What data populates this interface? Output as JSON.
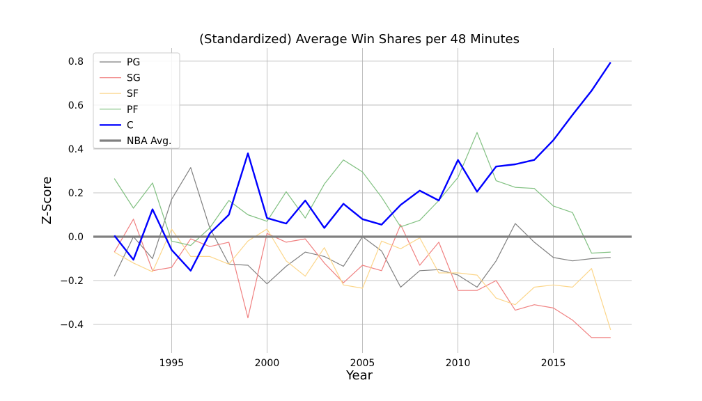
{
  "chart_data": {
    "type": "line",
    "title": "(Standardized) Average Win Shares per 48 Minutes",
    "xlabel": "Year",
    "ylabel": "Z-Score",
    "xlim": [
      1988.6,
      1919.4
    ],
    "ylim": [
      -0.53,
      0.86
    ],
    "grid": true,
    "legend_position": "top-left",
    "x_ticks": [
      1995,
      2000,
      2005,
      2010,
      2015
    ],
    "y_ticks": [
      -0.4,
      -0.2,
      0.0,
      0.2,
      0.4,
      0.6,
      0.8
    ],
    "y_tick_labels": [
      "−0.4",
      "−0.2",
      "0.0",
      "0.2",
      "0.4",
      "0.6",
      "0.8"
    ],
    "x": [
      1992,
      1993,
      1994,
      1995,
      1996,
      1997,
      1998,
      1999,
      2000,
      2001,
      2002,
      2003,
      2004,
      2005,
      2006,
      2007,
      2008,
      2009,
      2010,
      2011,
      2012,
      2013,
      2014,
      2015,
      2016,
      2017,
      2018
    ],
    "series": [
      {
        "name": "PG",
        "color": "#808080",
        "width": 1.2,
        "opacity": 1,
        "values": [
          -0.18,
          0.0,
          -0.1,
          0.17,
          0.315,
          0.04,
          -0.125,
          -0.13,
          -0.215,
          -0.135,
          -0.07,
          -0.09,
          -0.135,
          0.0,
          -0.065,
          -0.23,
          -0.155,
          -0.15,
          -0.175,
          -0.23,
          -0.11,
          0.06,
          -0.025,
          -0.095,
          -0.11,
          -0.1,
          -0.095
        ]
      },
      {
        "name": "SG",
        "color": "#f08080",
        "width": 1.2,
        "opacity": 1,
        "values": [
          -0.07,
          0.08,
          -0.155,
          -0.14,
          -0.01,
          -0.045,
          -0.025,
          -0.37,
          0.015,
          -0.025,
          -0.01,
          -0.12,
          -0.21,
          -0.13,
          -0.155,
          0.055,
          -0.13,
          -0.025,
          -0.245,
          -0.245,
          -0.2,
          -0.335,
          -0.31,
          -0.325,
          -0.38,
          -0.46,
          -0.46
        ]
      },
      {
        "name": "SF",
        "color": "#fcd68a",
        "width": 1.2,
        "opacity": 1,
        "values": [
          -0.07,
          -0.12,
          -0.16,
          0.035,
          -0.09,
          -0.09,
          -0.125,
          -0.02,
          0.035,
          -0.11,
          -0.18,
          -0.05,
          -0.22,
          -0.235,
          -0.02,
          -0.055,
          -0.005,
          -0.165,
          -0.165,
          -0.175,
          -0.28,
          -0.31,
          -0.23,
          -0.22,
          -0.23,
          -0.145,
          -0.425
        ]
      },
      {
        "name": "PF",
        "color": "#80c080",
        "width": 1.2,
        "opacity": 1,
        "values": [
          0.265,
          0.13,
          0.245,
          -0.02,
          -0.04,
          0.04,
          0.165,
          0.1,
          0.07,
          0.205,
          0.085,
          0.24,
          0.35,
          0.295,
          0.18,
          0.045,
          0.075,
          0.165,
          0.27,
          0.475,
          0.255,
          0.225,
          0.22,
          0.14,
          0.11,
          -0.075,
          -0.07
        ]
      },
      {
        "name": "C",
        "color": "#0000ff",
        "width": 2.4,
        "opacity": 1,
        "values": [
          0.005,
          -0.105,
          0.125,
          -0.06,
          -0.155,
          0.015,
          0.1,
          0.38,
          0.085,
          0.06,
          0.165,
          0.04,
          0.15,
          0.08,
          0.055,
          0.145,
          0.21,
          0.165,
          0.35,
          0.205,
          0.32,
          0.33,
          0.35,
          0.44,
          0.555,
          0.665,
          0.795
        ]
      },
      {
        "name": "NBA Avg.",
        "color": "#808080",
        "width": 3.2,
        "opacity": 1,
        "type": "hline",
        "y": 0.0
      }
    ]
  }
}
